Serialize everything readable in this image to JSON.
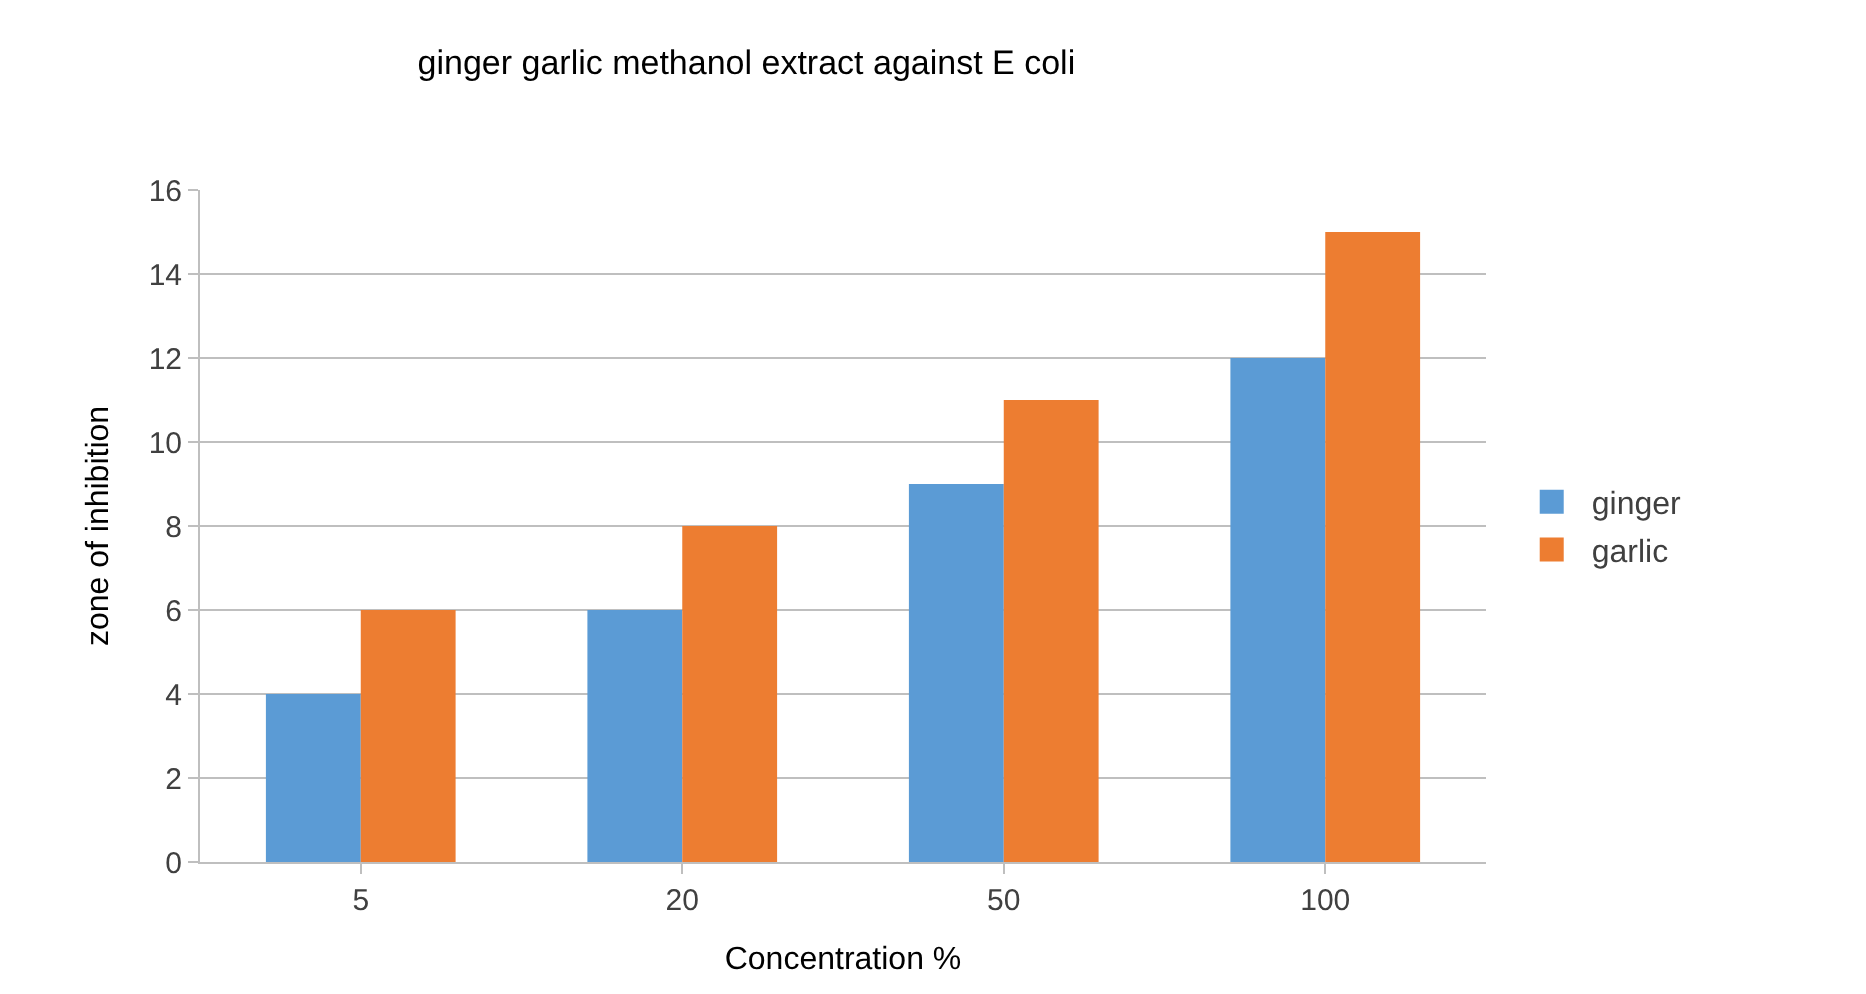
{
  "chart_data": {
    "type": "bar",
    "title": "ginger garlic methanol extract against E coli",
    "xlabel": "Concentration %",
    "ylabel": "zone of inhibition",
    "categories": [
      "5",
      "20",
      "50",
      "100"
    ],
    "series": [
      {
        "name": "ginger",
        "color": "#5b9bd5",
        "values": [
          4,
          6,
          9,
          12
        ]
      },
      {
        "name": "garlic",
        "color": "#ed7d31",
        "values": [
          6,
          8,
          11,
          15
        ]
      }
    ],
    "ylim": [
      0,
      16
    ],
    "yticks": [
      0,
      2,
      4,
      6,
      8,
      10,
      12,
      14,
      16
    ],
    "grid": "y",
    "legend": "right"
  }
}
